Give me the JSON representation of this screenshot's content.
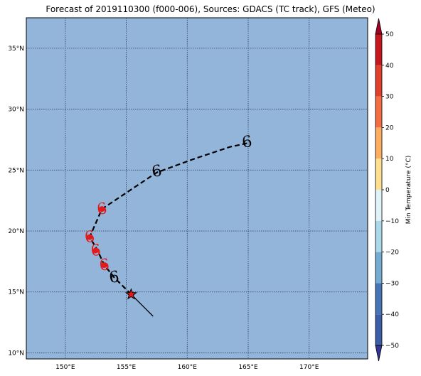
{
  "title": "Forecast of 2019110300 (f000-006), Sources: GDACS (TC track), GFS (Meteo)",
  "map": {
    "ocean_color": "#92b5d9",
    "lon_range": [
      146.8,
      174.8
    ],
    "lat_range": [
      9.5,
      37.5
    ],
    "lon_ticks": [
      {
        "value": 150,
        "label": "150°E"
      },
      {
        "value": 155,
        "label": "155°E"
      },
      {
        "value": 160,
        "label": "160°E"
      },
      {
        "value": 165,
        "label": "165°E"
      },
      {
        "value": 170,
        "label": "170°E"
      }
    ],
    "lat_ticks": [
      {
        "value": 10,
        "label": "10°N"
      },
      {
        "value": 15,
        "label": "15°N"
      },
      {
        "value": 20,
        "label": "20°N"
      },
      {
        "value": 25,
        "label": "25°N"
      },
      {
        "value": 30,
        "label": "30°N"
      },
      {
        "value": 35,
        "label": "35°N"
      }
    ],
    "forecast_track": [
      {
        "lon": 155.4,
        "lat": 14.8
      },
      {
        "lon": 154.0,
        "lat": 16.2
      },
      {
        "lon": 153.2,
        "lat": 17.2
      },
      {
        "lon": 152.6,
        "lat": 18.5
      },
      {
        "lon": 152.0,
        "lat": 19.5
      },
      {
        "lon": 153.0,
        "lat": 21.8
      },
      {
        "lon": 155.4,
        "lat": 23.4
      },
      {
        "lon": 157.5,
        "lat": 24.8
      },
      {
        "lon": 160.5,
        "lat": 25.9
      },
      {
        "lon": 163.5,
        "lat": 26.9
      },
      {
        "lon": 164.9,
        "lat": 27.2
      }
    ],
    "past_track": [
      {
        "lon": 157.2,
        "lat": 13.0
      },
      {
        "lon": 156.6,
        "lat": 13.6
      },
      {
        "lon": 155.9,
        "lat": 14.3
      },
      {
        "lon": 155.4,
        "lat": 14.8
      }
    ],
    "current_position": {
      "lon": 155.4,
      "lat": 14.8
    },
    "storm_symbols": [
      {
        "lon": 153.0,
        "lat": 21.8,
        "color": "#e31a1c"
      },
      {
        "lon": 152.0,
        "lat": 19.5,
        "color": "#e31a1c"
      },
      {
        "lon": 152.5,
        "lat": 18.4,
        "color": "#e31a1c"
      },
      {
        "lon": 153.2,
        "lat": 17.2,
        "color": "#e31a1c"
      },
      {
        "lon": 154.0,
        "lat": 16.2,
        "color": "#000000"
      },
      {
        "lon": 157.5,
        "lat": 24.9,
        "color": "#000000"
      },
      {
        "lon": 164.9,
        "lat": 27.3,
        "color": "#000000"
      }
    ]
  },
  "colorbar": {
    "label": "Min Temperature (°C)",
    "ticks": [
      "50",
      "40",
      "30",
      "20",
      "10",
      "0",
      "−10",
      "−20",
      "−30",
      "−40",
      "−50"
    ],
    "colors_top_to_bottom": [
      "#a50026",
      "#c7171e",
      "#e0402d",
      "#f46d43",
      "#fdae61",
      "#fee090",
      "#ffffbf",
      "#e0f3f8",
      "#abd9e9",
      "#74add1",
      "#4575b4",
      "#3c5ea8",
      "#313695"
    ]
  }
}
